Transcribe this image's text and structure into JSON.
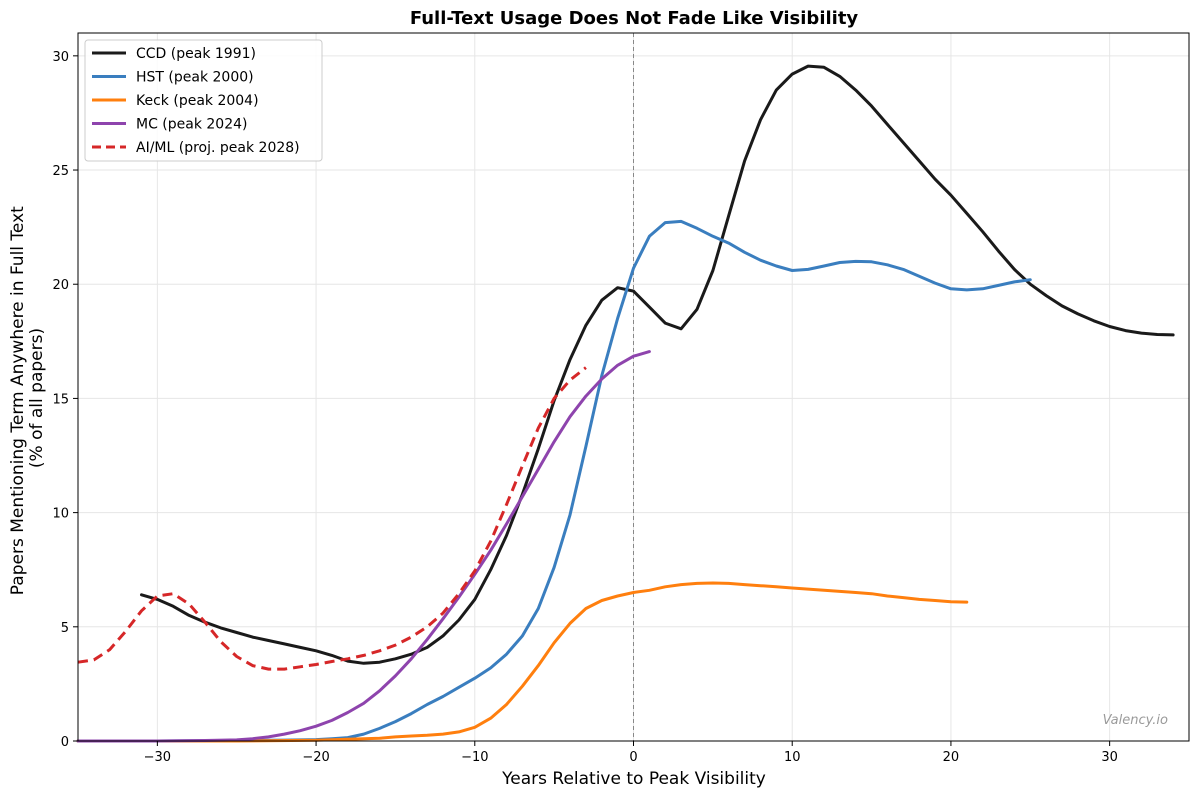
{
  "chart_data": {
    "type": "line",
    "title": "Full-Text Usage Does Not Fade Like Visibility",
    "xlabel": "Years Relative to Peak Visibility",
    "ylabel_lines": [
      "Papers Mentioning Term Anywhere in Full Text",
      "(% of all papers)"
    ],
    "xlim": [
      -35,
      35
    ],
    "ylim": [
      0,
      31
    ],
    "xticks": [
      -30,
      -20,
      -10,
      0,
      10,
      20,
      30
    ],
    "xtick_labels": [
      "−30",
      "−20",
      "−10",
      "0",
      "10",
      "20",
      "30"
    ],
    "yticks": [
      0,
      5,
      10,
      15,
      20,
      25,
      30
    ],
    "ytick_labels": [
      "0",
      "5",
      "10",
      "15",
      "20",
      "25",
      "30"
    ],
    "grid": true,
    "legend_position": "top-left",
    "reference_line_x": 0,
    "watermark": "Valency.io",
    "series": [
      {
        "name": "CCD (peak 1991)",
        "color": "#1a1a1a",
        "dash": false,
        "points": [
          [
            -31,
            6.4
          ],
          [
            -30,
            6.2
          ],
          [
            -29,
            5.9
          ],
          [
            -28,
            5.5
          ],
          [
            -27,
            5.2
          ],
          [
            -26,
            4.95
          ],
          [
            -25,
            4.75
          ],
          [
            -24,
            4.55
          ],
          [
            -23,
            4.4
          ],
          [
            -22,
            4.25
          ],
          [
            -21,
            4.1
          ],
          [
            -20,
            3.95
          ],
          [
            -19,
            3.75
          ],
          [
            -18,
            3.5
          ],
          [
            -17,
            3.4
          ],
          [
            -16,
            3.45
          ],
          [
            -15,
            3.6
          ],
          [
            -14,
            3.8
          ],
          [
            -13,
            4.1
          ],
          [
            -12,
            4.6
          ],
          [
            -11,
            5.3
          ],
          [
            -10,
            6.2
          ],
          [
            -9,
            7.5
          ],
          [
            -8,
            9.0
          ],
          [
            -7,
            10.8
          ],
          [
            -6,
            12.8
          ],
          [
            -5,
            14.9
          ],
          [
            -4,
            16.7
          ],
          [
            -3,
            18.2
          ],
          [
            -2,
            19.3
          ],
          [
            -1,
            19.85
          ],
          [
            0,
            19.7
          ],
          [
            1,
            19.0
          ],
          [
            2,
            18.3
          ],
          [
            3,
            18.05
          ],
          [
            4,
            18.9
          ],
          [
            5,
            20.6
          ],
          [
            6,
            23.0
          ],
          [
            7,
            25.4
          ],
          [
            8,
            27.2
          ],
          [
            9,
            28.5
          ],
          [
            10,
            29.2
          ],
          [
            11,
            29.55
          ],
          [
            12,
            29.5
          ],
          [
            13,
            29.1
          ],
          [
            14,
            28.5
          ],
          [
            15,
            27.8
          ],
          [
            16,
            27.0
          ],
          [
            17,
            26.2
          ],
          [
            18,
            25.4
          ],
          [
            19,
            24.6
          ],
          [
            20,
            23.9
          ],
          [
            21,
            23.1
          ],
          [
            22,
            22.3
          ],
          [
            23,
            21.45
          ],
          [
            24,
            20.65
          ],
          [
            25,
            20.0
          ],
          [
            26,
            19.5
          ],
          [
            27,
            19.05
          ],
          [
            28,
            18.7
          ],
          [
            29,
            18.4
          ],
          [
            30,
            18.15
          ],
          [
            31,
            17.97
          ],
          [
            32,
            17.86
          ],
          [
            33,
            17.8
          ],
          [
            34,
            17.78
          ]
        ]
      },
      {
        "name": "HST (peak 2000)",
        "color": "#3a7ebf",
        "dash": false,
        "points": [
          [
            -35,
            0
          ],
          [
            -30,
            0
          ],
          [
            -25,
            0.02
          ],
          [
            -22,
            0.04
          ],
          [
            -20,
            0.06
          ],
          [
            -19,
            0.1
          ],
          [
            -18,
            0.15
          ],
          [
            -17,
            0.3
          ],
          [
            -16,
            0.55
          ],
          [
            -15,
            0.85
          ],
          [
            -14,
            1.2
          ],
          [
            -13,
            1.6
          ],
          [
            -12,
            1.95
          ],
          [
            -11,
            2.35
          ],
          [
            -10,
            2.75
          ],
          [
            -9,
            3.2
          ],
          [
            -8,
            3.8
          ],
          [
            -7,
            4.6
          ],
          [
            -6,
            5.8
          ],
          [
            -5,
            7.6
          ],
          [
            -4,
            9.9
          ],
          [
            -3,
            12.9
          ],
          [
            -2,
            16.0
          ],
          [
            -1,
            18.5
          ],
          [
            0,
            20.7
          ],
          [
            1,
            22.1
          ],
          [
            2,
            22.7
          ],
          [
            3,
            22.75
          ],
          [
            4,
            22.45
          ],
          [
            5,
            22.1
          ],
          [
            6,
            21.8
          ],
          [
            7,
            21.4
          ],
          [
            8,
            21.05
          ],
          [
            9,
            20.8
          ],
          [
            10,
            20.6
          ],
          [
            11,
            20.65
          ],
          [
            12,
            20.8
          ],
          [
            13,
            20.95
          ],
          [
            14,
            21.0
          ],
          [
            15,
            20.98
          ],
          [
            16,
            20.85
          ],
          [
            17,
            20.65
          ],
          [
            18,
            20.35
          ],
          [
            19,
            20.05
          ],
          [
            20,
            19.8
          ],
          [
            21,
            19.75
          ],
          [
            22,
            19.8
          ],
          [
            23,
            19.95
          ],
          [
            24,
            20.1
          ],
          [
            25,
            20.2
          ]
        ]
      },
      {
        "name": "Keck (peak 2004)",
        "color": "#ff7f0e",
        "dash": false,
        "points": [
          [
            -35,
            0
          ],
          [
            -25,
            0
          ],
          [
            -20,
            0.03
          ],
          [
            -18,
            0.08
          ],
          [
            -16,
            0.12
          ],
          [
            -15,
            0.18
          ],
          [
            -14,
            0.22
          ],
          [
            -13,
            0.25
          ],
          [
            -12,
            0.3
          ],
          [
            -11,
            0.4
          ],
          [
            -10,
            0.6
          ],
          [
            -9,
            1.0
          ],
          [
            -8,
            1.6
          ],
          [
            -7,
            2.4
          ],
          [
            -6,
            3.3
          ],
          [
            -5,
            4.3
          ],
          [
            -4,
            5.15
          ],
          [
            -3,
            5.8
          ],
          [
            -2,
            6.15
          ],
          [
            -1,
            6.35
          ],
          [
            0,
            6.5
          ],
          [
            1,
            6.6
          ],
          [
            2,
            6.75
          ],
          [
            3,
            6.85
          ],
          [
            4,
            6.9
          ],
          [
            5,
            6.92
          ],
          [
            6,
            6.9
          ],
          [
            7,
            6.85
          ],
          [
            8,
            6.8
          ],
          [
            9,
            6.75
          ],
          [
            10,
            6.7
          ],
          [
            11,
            6.65
          ],
          [
            12,
            6.6
          ],
          [
            13,
            6.55
          ],
          [
            14,
            6.5
          ],
          [
            15,
            6.45
          ],
          [
            16,
            6.35
          ],
          [
            17,
            6.28
          ],
          [
            18,
            6.2
          ],
          [
            19,
            6.15
          ],
          [
            20,
            6.1
          ],
          [
            21,
            6.08
          ]
        ]
      },
      {
        "name": "MC (peak 2024)",
        "color": "#8e44ad",
        "dash": false,
        "points": [
          [
            -35,
            0
          ],
          [
            -30,
            0
          ],
          [
            -27,
            0.02
          ],
          [
            -25,
            0.05
          ],
          [
            -24,
            0.1
          ],
          [
            -23,
            0.18
          ],
          [
            -22,
            0.3
          ],
          [
            -21,
            0.45
          ],
          [
            -20,
            0.65
          ],
          [
            -19,
            0.9
          ],
          [
            -18,
            1.25
          ],
          [
            -17,
            1.65
          ],
          [
            -16,
            2.2
          ],
          [
            -15,
            2.85
          ],
          [
            -14,
            3.6
          ],
          [
            -13,
            4.45
          ],
          [
            -12,
            5.35
          ],
          [
            -11,
            6.3
          ],
          [
            -10,
            7.3
          ],
          [
            -9,
            8.35
          ],
          [
            -8,
            9.5
          ],
          [
            -7,
            10.7
          ],
          [
            -6,
            11.9
          ],
          [
            -5,
            13.1
          ],
          [
            -4,
            14.2
          ],
          [
            -3,
            15.1
          ],
          [
            -2,
            15.85
          ],
          [
            -1,
            16.45
          ],
          [
            0,
            16.85
          ],
          [
            1,
            17.05
          ]
        ]
      },
      {
        "name": "AI/ML (proj. peak 2028)",
        "color": "#d62728",
        "dash": true,
        "points": [
          [
            -35,
            3.45
          ],
          [
            -34,
            3.55
          ],
          [
            -33,
            4.0
          ],
          [
            -32,
            4.8
          ],
          [
            -31,
            5.7
          ],
          [
            -30,
            6.35
          ],
          [
            -29,
            6.45
          ],
          [
            -28,
            6.0
          ],
          [
            -27,
            5.2
          ],
          [
            -26,
            4.35
          ],
          [
            -25,
            3.7
          ],
          [
            -24,
            3.3
          ],
          [
            -23,
            3.15
          ],
          [
            -22,
            3.15
          ],
          [
            -21,
            3.25
          ],
          [
            -20,
            3.35
          ],
          [
            -19,
            3.48
          ],
          [
            -18,
            3.6
          ],
          [
            -17,
            3.75
          ],
          [
            -16,
            3.95
          ],
          [
            -15,
            4.2
          ],
          [
            -14,
            4.55
          ],
          [
            -13,
            5.0
          ],
          [
            -12,
            5.6
          ],
          [
            -11,
            6.45
          ],
          [
            -10,
            7.45
          ],
          [
            -9,
            8.75
          ],
          [
            -8,
            10.35
          ],
          [
            -7,
            12.05
          ],
          [
            -6,
            13.7
          ],
          [
            -5,
            15.0
          ],
          [
            -4,
            15.8
          ],
          [
            -3,
            16.35
          ]
        ]
      }
    ]
  }
}
